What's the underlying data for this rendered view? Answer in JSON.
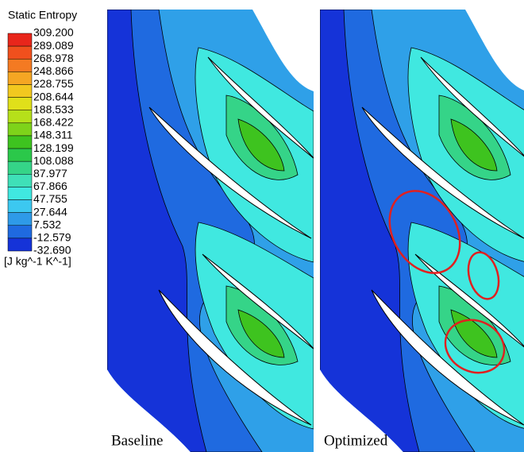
{
  "legend": {
    "title": "Static Entropy",
    "levels": [
      "309.200",
      "289.089",
      "268.978",
      "248.866",
      "228.755",
      "208.644",
      "188.533",
      "168.422",
      "148.311",
      "128.199",
      "108.088",
      "87.977",
      "67.866",
      "47.755",
      "27.644",
      "7.532",
      "-12.579",
      "-32.690"
    ],
    "unit": "[J kg^-1 K^-1]"
  },
  "panels": [
    {
      "label": "Baseline"
    },
    {
      "label": "Optimized"
    }
  ]
}
